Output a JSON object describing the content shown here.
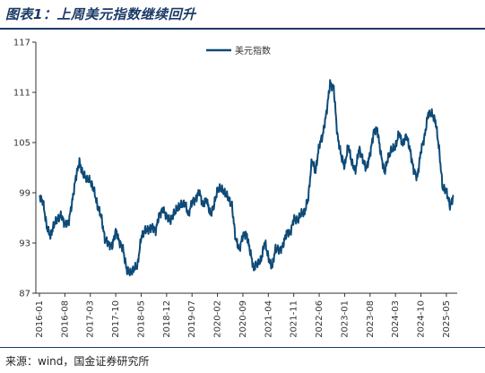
{
  "title": "图表1：上周美元指数继续回升",
  "source": "来源：wind，国金证券研究所",
  "chart_data": {
    "type": "line",
    "title": "",
    "xlabel": "",
    "ylabel": "",
    "ylim": [
      87,
      117
    ],
    "yticks": [
      87,
      93,
      99,
      105,
      111,
      117
    ],
    "xticks": [
      "2016-01",
      "2016-08",
      "2017-03",
      "2017-10",
      "2018-05",
      "2018-12",
      "2019-07",
      "2020-02",
      "2020-09",
      "2021-04",
      "2021-11",
      "2022-06",
      "2023-01",
      "2023-08",
      "2024-03",
      "2024-10",
      "2025-05"
    ],
    "legend": "top-center",
    "grid": false,
    "color": "#0d4a78",
    "series": [
      {
        "name": "美元指数",
        "x": [
          "2016-01",
          "2016-02",
          "2016-03",
          "2016-04",
          "2016-05",
          "2016-06",
          "2016-07",
          "2016-08",
          "2016-09",
          "2016-10",
          "2016-11",
          "2016-12",
          "2017-01",
          "2017-02",
          "2017-03",
          "2017-04",
          "2017-05",
          "2017-06",
          "2017-07",
          "2017-08",
          "2017-09",
          "2017-10",
          "2017-11",
          "2017-12",
          "2018-01",
          "2018-02",
          "2018-03",
          "2018-04",
          "2018-05",
          "2018-06",
          "2018-07",
          "2018-08",
          "2018-09",
          "2018-10",
          "2018-11",
          "2018-12",
          "2019-01",
          "2019-02",
          "2019-03",
          "2019-04",
          "2019-05",
          "2019-06",
          "2019-07",
          "2019-08",
          "2019-09",
          "2019-10",
          "2019-11",
          "2019-12",
          "2020-01",
          "2020-02",
          "2020-03",
          "2020-04",
          "2020-05",
          "2020-06",
          "2020-07",
          "2020-08",
          "2020-09",
          "2020-10",
          "2020-11",
          "2020-12",
          "2021-01",
          "2021-02",
          "2021-03",
          "2021-04",
          "2021-05",
          "2021-06",
          "2021-07",
          "2021-08",
          "2021-09",
          "2021-10",
          "2021-11",
          "2021-12",
          "2022-01",
          "2022-02",
          "2022-03",
          "2022-04",
          "2022-05",
          "2022-06",
          "2022-07",
          "2022-08",
          "2022-09",
          "2022-10",
          "2022-11",
          "2022-12",
          "2023-01",
          "2023-02",
          "2023-03",
          "2023-04",
          "2023-05",
          "2023-06",
          "2023-07",
          "2023-08",
          "2023-09",
          "2023-10",
          "2023-11",
          "2023-12",
          "2024-01",
          "2024-02",
          "2024-03",
          "2024-04",
          "2024-05",
          "2024-06",
          "2024-07",
          "2024-08",
          "2024-09",
          "2024-10",
          "2024-11",
          "2024-12",
          "2025-01",
          "2025-02",
          "2025-03",
          "2025-04",
          "2025-05",
          "2025-06",
          "2025-07"
        ],
        "values": [
          98.7,
          97.8,
          95.0,
          93.8,
          95.2,
          95.9,
          96.3,
          95.2,
          95.4,
          97.9,
          100.8,
          102.7,
          101.2,
          100.7,
          100.4,
          99.3,
          97.4,
          96.2,
          93.5,
          92.9,
          92.6,
          94.5,
          93.1,
          92.3,
          89.8,
          89.4,
          89.9,
          90.3,
          93.7,
          94.5,
          94.6,
          94.9,
          94.5,
          96.4,
          97.0,
          96.2,
          95.6,
          96.5,
          97.2,
          97.5,
          97.8,
          96.4,
          97.9,
          98.2,
          99.2,
          97.5,
          98.3,
          96.4,
          97.4,
          99.4,
          99.5,
          99.0,
          98.4,
          97.4,
          93.5,
          92.2,
          93.9,
          94.1,
          92.0,
          89.9,
          90.6,
          90.9,
          93.2,
          91.3,
          90.0,
          92.4,
          92.1,
          92.6,
          94.3,
          94.1,
          95.9,
          95.7,
          96.5,
          96.7,
          98.4,
          103.0,
          101.5,
          104.7,
          105.9,
          108.6,
          112.1,
          111.5,
          105.9,
          103.5,
          102.1,
          104.8,
          102.5,
          101.7,
          104.3,
          102.9,
          101.9,
          103.6,
          106.2,
          106.6,
          103.5,
          101.4,
          103.3,
          104.2,
          104.5,
          106.2,
          104.7,
          105.9,
          104.1,
          101.7,
          100.8,
          104.0,
          105.7,
          108.5,
          108.4,
          107.6,
          104.2,
          99.5,
          99.3,
          97.4,
          98.7
        ]
      }
    ]
  }
}
